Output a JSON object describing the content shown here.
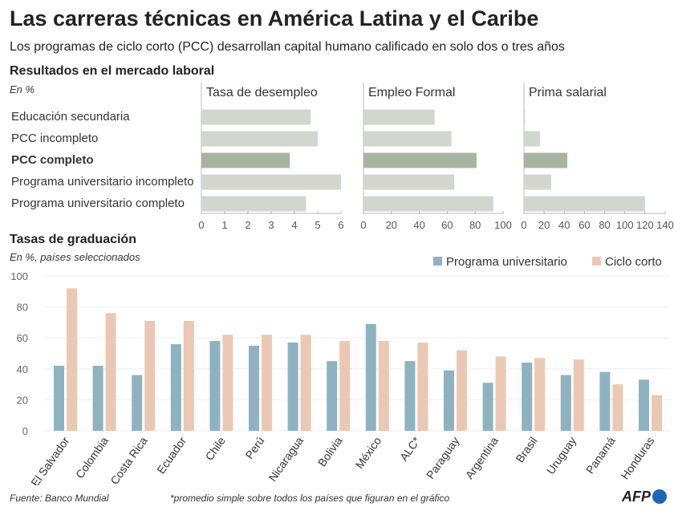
{
  "title": "Las carreras técnicas en América Latina y el Caribe",
  "subtitle": "Los programas de ciclo corto (PCC) desarrollan capital humano calificado en solo dos o tres años",
  "colors": {
    "bar": "#d2d7cd",
    "highlight": "#a7b4a0",
    "university": "#8fb2c1",
    "short_cycle": "#ebc8b3"
  },
  "chart_data": [
    {
      "type": "bar",
      "orientation": "horizontal",
      "section_title": "Resultados en el mercado laboral",
      "unit_note": "En %",
      "categories": [
        "Educación secundaria",
        "PCC incompleto",
        "PCC completo",
        "Programa universitario incompleto",
        "Programa universitario completo"
      ],
      "highlight": "PCC completo",
      "panels": [
        {
          "title": "Tasa de desempleo",
          "values": [
            4.7,
            5.0,
            3.8,
            6.0,
            4.5
          ],
          "xlim": [
            0,
            6
          ],
          "ticks": [
            0,
            1,
            2,
            3,
            4,
            5,
            6
          ]
        },
        {
          "title": "Empleo Formal",
          "values": [
            51,
            63,
            81,
            65,
            93
          ],
          "xlim": [
            0,
            100
          ],
          "ticks": [
            0,
            20,
            40,
            60,
            80,
            100
          ]
        },
        {
          "title": "Prima salarial",
          "values": [
            1,
            16,
            43,
            27,
            120
          ],
          "xlim": [
            0,
            140
          ],
          "ticks": [
            0,
            20,
            40,
            60,
            80,
            100,
            120,
            140
          ]
        }
      ]
    },
    {
      "type": "bar",
      "section_title": "Tasas de graduación",
      "unit_note": "En %, países seleccionados",
      "categories": [
        "El Salvador",
        "Colombia",
        "Costa Rica",
        "Ecuador",
        "Chile",
        "Perú",
        "Nicaragua",
        "Bolivia",
        "México",
        "ALC*",
        "Paraguay",
        "Argentina",
        "Brasil",
        "Uruguay",
        "Panamá",
        "Honduras"
      ],
      "series": [
        {
          "name": "Programa universitario",
          "values": [
            42,
            42,
            36,
            56,
            58,
            55,
            57,
            45,
            69,
            45,
            39,
            31,
            44,
            36,
            38,
            33
          ]
        },
        {
          "name": "Ciclo corto",
          "values": [
            92,
            76,
            71,
            71,
            62,
            62,
            62,
            58,
            58,
            57,
            52,
            48,
            47,
            46,
            30,
            23
          ]
        }
      ],
      "ylim": [
        0,
        100
      ],
      "yticks": [
        0,
        20,
        40,
        60,
        80,
        100
      ],
      "grid": true,
      "legend": "top-right"
    }
  ],
  "footer": {
    "source": "Fuente: Banco Mundial",
    "note": "*promedio simple sobre todos los países que figuran en el gráfico",
    "logo": "AFP"
  }
}
